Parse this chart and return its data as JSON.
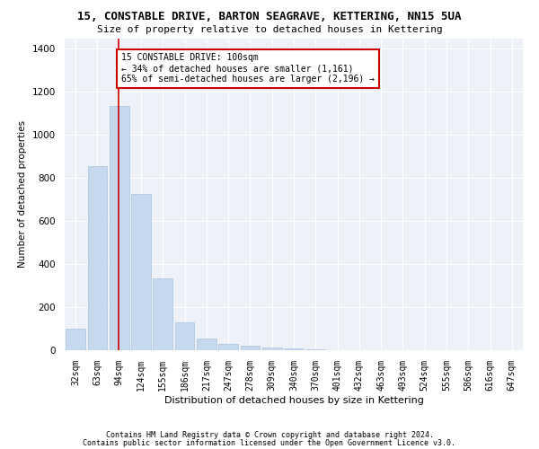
{
  "title": "15, CONSTABLE DRIVE, BARTON SEAGRAVE, KETTERING, NN15 5UA",
  "subtitle": "Size of property relative to detached houses in Kettering",
  "xlabel": "Distribution of detached houses by size in Kettering",
  "ylabel": "Number of detached properties",
  "footnote1": "Contains HM Land Registry data © Crown copyright and database right 2024.",
  "footnote2": "Contains public sector information licensed under the Open Government Licence v3.0.",
  "bar_color": "#c5d8ed",
  "bar_edge_color": "#a8c4de",
  "bg_color": "#eef2f8",
  "grid_color": "#ffffff",
  "categories": [
    "32sqm",
    "63sqm",
    "94sqm",
    "124sqm",
    "155sqm",
    "186sqm",
    "217sqm",
    "247sqm",
    "278sqm",
    "309sqm",
    "340sqm",
    "370sqm",
    "401sqm",
    "432sqm",
    "463sqm",
    "493sqm",
    "524sqm",
    "555sqm",
    "586sqm",
    "616sqm",
    "647sqm"
  ],
  "values": [
    100,
    855,
    1135,
    725,
    335,
    130,
    55,
    30,
    20,
    13,
    8,
    4,
    0,
    0,
    0,
    0,
    0,
    0,
    0,
    0,
    0
  ],
  "ylim": [
    0,
    1450
  ],
  "yticks": [
    0,
    200,
    400,
    600,
    800,
    1000,
    1200,
    1400
  ],
  "red_line_x": 1.97,
  "annotation_text": "15 CONSTABLE DRIVE: 100sqm\n← 34% of detached houses are smaller (1,161)\n65% of semi-detached houses are larger (2,196) →",
  "annotation_box_color": "#ffffff",
  "annotation_border_color": "#cc0000"
}
